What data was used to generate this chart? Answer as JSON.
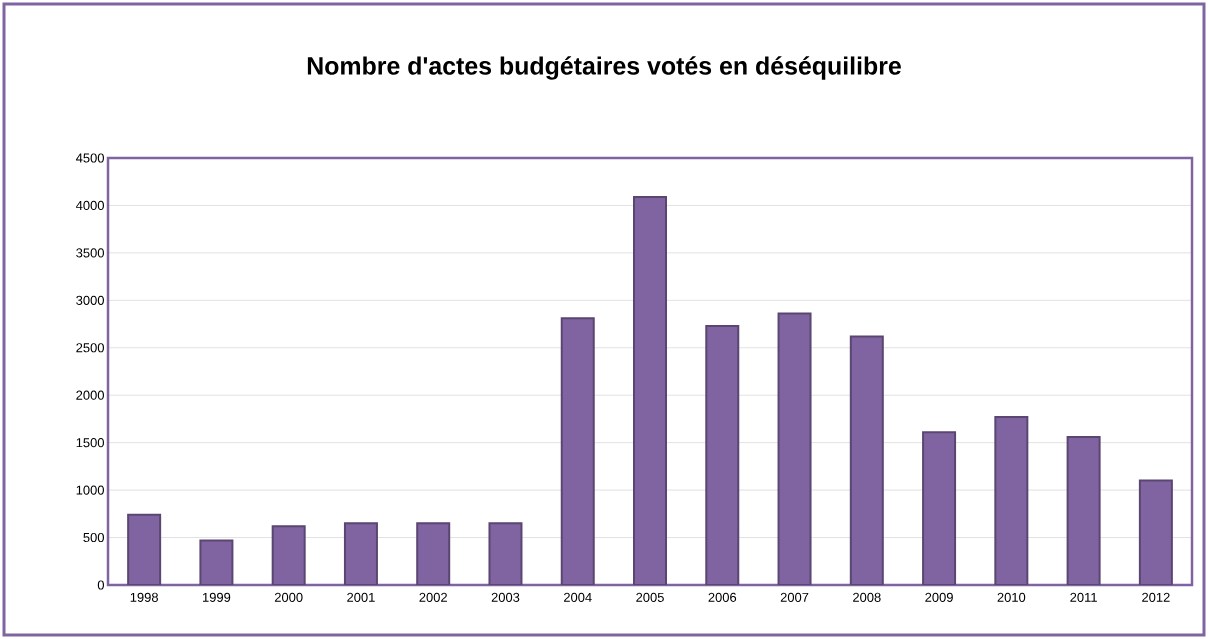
{
  "chart_data": {
    "type": "bar",
    "title": "Nombre d'actes budgétaires votés en déséquilibre",
    "categories": [
      "1998",
      "1999",
      "2000",
      "2001",
      "2002",
      "2003",
      "2004",
      "2005",
      "2006",
      "2007",
      "2008",
      "2009",
      "2010",
      "2011",
      "2012"
    ],
    "values": [
      740,
      470,
      620,
      650,
      650,
      650,
      2810,
      4090,
      2730,
      2860,
      2620,
      1610,
      1770,
      1560,
      1100
    ],
    "color": "#8064a2",
    "ylim": [
      0,
      4500
    ],
    "yticks": [
      0,
      500,
      1000,
      1500,
      2000,
      2500,
      3000,
      3500,
      4000,
      4500
    ],
    "grid": "y"
  }
}
